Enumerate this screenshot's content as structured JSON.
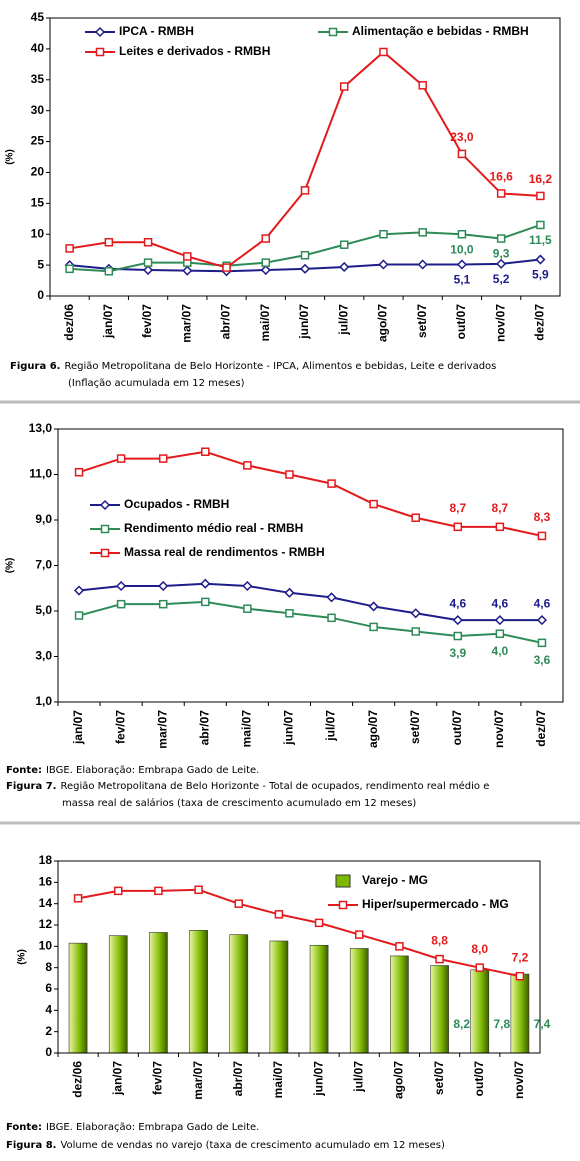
{
  "chart_data": [
    {
      "type": "line",
      "y_label": "(%)",
      "categories": [
        "dez/06",
        "jan/07",
        "fev/07",
        "mar/07",
        "abr/07",
        "mai/07",
        "jun/07",
        "jul/07",
        "ago/07",
        "set/07",
        "out/07",
        "nov/07",
        "dez/07"
      ],
      "ylim": [
        0,
        45
      ],
      "yticks": [
        0,
        5,
        10,
        15,
        20,
        25,
        30,
        35,
        40,
        45
      ],
      "grid": false,
      "series": [
        {
          "name": "IPCA - RMBH",
          "color": "#1c1c8a",
          "marker": "diamond",
          "values": [
            5.0,
            4.4,
            4.2,
            4.1,
            4.0,
            4.2,
            4.4,
            4.7,
            5.1,
            5.1,
            5.1,
            5.2,
            5.9
          ],
          "value_labels": [
            null,
            null,
            null,
            null,
            null,
            null,
            null,
            null,
            null,
            null,
            "5,1",
            "5,2",
            "5,9"
          ]
        },
        {
          "name": "Alimentação e bebidas - RMBH",
          "color": "#2e8b57",
          "marker": "square",
          "values": [
            4.4,
            4.0,
            5.4,
            5.4,
            4.9,
            5.4,
            6.6,
            8.3,
            10.0,
            10.3,
            10.0,
            9.3,
            11.5
          ],
          "value_labels": [
            null,
            null,
            null,
            null,
            null,
            null,
            null,
            null,
            null,
            null,
            "10,0",
            "9,3",
            "11,5"
          ]
        },
        {
          "name": "Leites e derivados - RMBH",
          "color": "#e31a1c",
          "marker": "square",
          "values": [
            7.7,
            8.7,
            8.7,
            6.4,
            4.6,
            9.3,
            17.1,
            33.9,
            39.5,
            34.1,
            23.0,
            16.6,
            16.2
          ],
          "value_labels": [
            null,
            null,
            null,
            null,
            null,
            null,
            null,
            null,
            null,
            null,
            "23,0",
            "16,6",
            "16,2"
          ]
        }
      ],
      "caption_label": "Figura 6.",
      "caption": [
        "Região Metropolitana de Belo Horizonte - IPCA, Alimentos e bebidas, Leite e derivados",
        "(Inflação acumulada em 12 meses)"
      ]
    },
    {
      "type": "line",
      "y_label": "(%)",
      "categories": [
        "jan/07",
        "fev/07",
        "mar/07",
        "abr/07",
        "mai/07",
        "jun/07",
        "jul/07",
        "ago/07",
        "set/07",
        "out/07",
        "nov/07",
        "dez/07"
      ],
      "ylim": [
        1,
        13
      ],
      "yticks": [
        {
          "value": 1,
          "label": "1,0"
        },
        {
          "value": 3,
          "label": "3,0"
        },
        {
          "value": 5,
          "label": "5,0"
        },
        {
          "value": 7,
          "label": "7,0"
        },
        {
          "value": 9,
          "label": "9,0"
        },
        {
          "value": 11,
          "label": "11,0"
        },
        {
          "value": 13,
          "label": "13,0"
        }
      ],
      "grid": false,
      "series": [
        {
          "name": "Ocupados - RMBH",
          "color": "#1c1c8a",
          "marker": "diamond",
          "values": [
            5.9,
            6.1,
            6.1,
            6.2,
            6.1,
            5.8,
            5.6,
            5.2,
            4.9,
            4.6,
            4.6,
            4.6
          ],
          "value_labels": [
            null,
            null,
            null,
            null,
            null,
            null,
            null,
            null,
            null,
            "4,6",
            "4,6",
            "4,6"
          ]
        },
        {
          "name": "Rendimento médio real - RMBH",
          "color": "#2e8b57",
          "marker": "square",
          "values": [
            4.8,
            5.3,
            5.3,
            5.4,
            5.1,
            4.9,
            4.7,
            4.3,
            4.1,
            3.9,
            4.0,
            3.6
          ],
          "value_labels": [
            null,
            null,
            null,
            null,
            null,
            null,
            null,
            null,
            null,
            "3,9",
            "4,0",
            "3,6"
          ]
        },
        {
          "name": "Massa real de rendimentos - RMBH",
          "color": "#e31a1c",
          "marker": "square",
          "values": [
            11.1,
            11.7,
            11.7,
            12.0,
            11.4,
            11.0,
            10.6,
            9.7,
            9.1,
            8.7,
            8.7,
            8.3
          ],
          "value_labels": [
            null,
            null,
            null,
            null,
            null,
            null,
            null,
            null,
            null,
            "8,7",
            "8,7",
            "8,3"
          ]
        }
      ],
      "source_label": "Fonte:",
      "source": "IBGE. Elaboração: Embrapa Gado de Leite.",
      "caption_label": "Figura 7.",
      "caption": [
        "Região Metropolitana de Belo Horizonte - Total de ocupados, rendimento real médio e",
        "massa real de salários (taxa de crescimento acumulado em 12 meses)"
      ]
    },
    {
      "type": "bar",
      "y_label": "(%)",
      "categories": [
        "dez/06",
        "jan/07",
        "fev/07",
        "mar/07",
        "abr/07",
        "mai/07",
        "jun/07",
        "jul/07",
        "ago/07",
        "set/07",
        "out/07",
        "nov/07"
      ],
      "ylim": [
        0,
        18
      ],
      "yticks": [
        0,
        2,
        4,
        6,
        8,
        10,
        12,
        14,
        16,
        18
      ],
      "grid": false,
      "series": [
        {
          "name": "Varejo - MG",
          "type": "bar",
          "color": "#7cb800",
          "values": [
            10.3,
            11.0,
            11.3,
            11.5,
            11.1,
            10.5,
            10.1,
            9.8,
            9.1,
            8.2,
            7.8,
            7.4
          ],
          "value_labels": [
            null,
            null,
            null,
            null,
            null,
            null,
            null,
            null,
            null,
            "8,2",
            "7,8",
            "7,4"
          ],
          "label_color": "#2e8b57"
        },
        {
          "name": "Hiper/supermercado - MG",
          "type": "line",
          "color": "#e31a1c",
          "marker": "square",
          "values": [
            14.5,
            15.2,
            15.2,
            15.3,
            14.0,
            13.0,
            12.2,
            11.1,
            10.0,
            8.8,
            8.0,
            7.2
          ],
          "value_labels": [
            null,
            null,
            null,
            null,
            null,
            null,
            null,
            null,
            null,
            "8,8",
            "8,0",
            "7,2"
          ]
        }
      ],
      "source_label": "Fonte:",
      "source": "IBGE. Elaboração: Embrapa Gado de Leite.",
      "caption_label": "Figura 8.",
      "caption": [
        "Volume de vendas no varejo (taxa de crescimento acumulado em 12 meses)"
      ]
    }
  ]
}
